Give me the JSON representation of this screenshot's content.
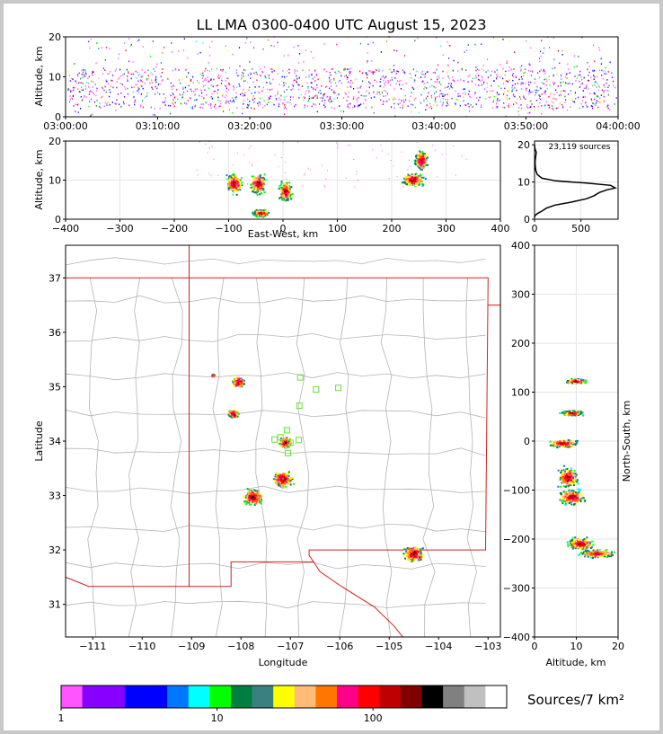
{
  "title": "LL LMA 0300-0400 UTC August 15, 2023",
  "colors": {
    "frame": "#c8c8c8",
    "state_border": "#d42020",
    "county_border": "#b4b4b4",
    "station": "#66e033",
    "altitude_profile_line": "#000000",
    "colorscale": [
      "#ff55ff",
      "#8800ff",
      "#8800ff",
      "#0000ff",
      "#0000ff",
      "#0077ff",
      "#00ffff",
      "#00ff00",
      "#008040",
      "#3a8080",
      "#ffff00",
      "#ffbb77",
      "#ff7700",
      "#ff0088",
      "#ff0000",
      "#c00000",
      "#800000",
      "#000000",
      "#808080",
      "#c0c0c0",
      "#ffffff"
    ]
  },
  "chart_data": [
    {
      "id": "time_height",
      "type": "scatter",
      "xlabel": "",
      "ylabel": "Altitude, km",
      "x_tick_labels": [
        "03:00:00",
        "03:10:00",
        "03:20:00",
        "03:30:00",
        "03:40:00",
        "03:50:00",
        "04:00:00"
      ],
      "xlim": [
        "03:00:00",
        "04:00:00"
      ],
      "ylim": [
        0,
        20
      ],
      "y_ticks": [
        0,
        10,
        20
      ],
      "description_of_data": "LMA VHF sources vs time, dense band 2-12 km altitude throughout the hour"
    },
    {
      "id": "ew_height",
      "type": "scatter",
      "xlabel": "East-West, km",
      "ylabel": "Altitude, km",
      "xlim": [
        -400,
        400
      ],
      "x_ticks": [
        -400,
        -300,
        -200,
        -100,
        0,
        100,
        200,
        300,
        400
      ],
      "ylim": [
        0,
        20
      ],
      "y_ticks": [
        0,
        10,
        20
      ],
      "clusters": [
        {
          "x": -90,
          "z": 9,
          "dx": 18,
          "dz": 3
        },
        {
          "x": -45,
          "z": 9,
          "dx": 18,
          "dz": 3
        },
        {
          "x": 5,
          "z": 7,
          "dx": 14,
          "dz": 3
        },
        {
          "x": -40,
          "z": 1.5,
          "dx": 18,
          "dz": 1
        },
        {
          "x": 255,
          "z": 15,
          "dx": 14,
          "dz": 3
        },
        {
          "x": 240,
          "z": 10,
          "dx": 25,
          "dz": 2
        }
      ]
    },
    {
      "id": "altitude_histogram",
      "type": "line",
      "annotation": "23,119 sources",
      "xlim": [
        0,
        900
      ],
      "x_ticks": [
        0,
        500
      ],
      "ylim": [
        0,
        21
      ],
      "y_ticks": [
        0,
        10,
        20
      ],
      "profile": [
        [
          0,
          0.5
        ],
        [
          5,
          1
        ],
        [
          30,
          1.5
        ],
        [
          80,
          2.2
        ],
        [
          130,
          3
        ],
        [
          220,
          3.8
        ],
        [
          400,
          4.6
        ],
        [
          560,
          5.5
        ],
        [
          640,
          6.3
        ],
        [
          700,
          7.2
        ],
        [
          780,
          7.9
        ],
        [
          870,
          8.4
        ],
        [
          820,
          9.1
        ],
        [
          560,
          9.7
        ],
        [
          230,
          10.3
        ],
        [
          80,
          11
        ],
        [
          30,
          12
        ],
        [
          15,
          13
        ],
        [
          10,
          14
        ],
        [
          6,
          15
        ],
        [
          8,
          16
        ],
        [
          14,
          17
        ],
        [
          18,
          18
        ],
        [
          4,
          19
        ],
        [
          0,
          20
        ]
      ]
    },
    {
      "id": "plan_view",
      "type": "scatter",
      "xlabel": "Longitude",
      "ylabel": "Latitude",
      "xlim": [
        -111.55,
        -102.75
      ],
      "ylim": [
        30.4,
        37.6
      ],
      "x_ticks": [
        -111,
        -110,
        -109,
        -108,
        -107,
        -106,
        -105,
        -104,
        -103
      ],
      "y_ticks": [
        31,
        32,
        33,
        34,
        35,
        36,
        37
      ],
      "storm_clusters": [
        {
          "lon": -108.05,
          "lat": 35.08,
          "r": 0.18
        },
        {
          "lon": -108.15,
          "lat": 34.5,
          "r": 0.15
        },
        {
          "lon": -107.1,
          "lat": 33.97,
          "r": 0.18
        },
        {
          "lon": -107.15,
          "lat": 33.3,
          "r": 0.28
        },
        {
          "lon": -107.75,
          "lat": 32.97,
          "r": 0.28
        },
        {
          "lon": -104.5,
          "lat": 31.92,
          "r": 0.28
        },
        {
          "lon": -108.55,
          "lat": 35.2,
          "r": 0.05
        }
      ],
      "stations": [
        {
          "lon": -106.8,
          "lat": 35.17
        },
        {
          "lon": -106.48,
          "lat": 34.95
        },
        {
          "lon": -106.03,
          "lat": 34.98
        },
        {
          "lon": -106.82,
          "lat": 34.65
        },
        {
          "lon": -107.07,
          "lat": 34.2
        },
        {
          "lon": -107.2,
          "lat": 34.07
        },
        {
          "lon": -107.32,
          "lat": 34.03
        },
        {
          "lon": -107.0,
          "lat": 33.97
        },
        {
          "lon": -106.83,
          "lat": 34.02
        },
        {
          "lon": -107.05,
          "lat": 33.78
        }
      ]
    },
    {
      "id": "height_ns",
      "type": "scatter",
      "xlabel": "Altitude, km",
      "ylabel": "North-South, km",
      "xlim": [
        0,
        20
      ],
      "x_ticks": [
        0,
        10,
        20
      ],
      "ylim": [
        -400,
        400
      ],
      "y_ticks": [
        -400,
        -300,
        -200,
        -100,
        0,
        100,
        200,
        300,
        400
      ],
      "clusters": [
        {
          "z": 10,
          "y": 122,
          "dz": 3,
          "dy": 6
        },
        {
          "z": 9,
          "y": 57,
          "dz": 3,
          "dy": 6
        },
        {
          "z": 7,
          "y": -5,
          "dz": 4,
          "dy": 10
        },
        {
          "z": 8,
          "y": -75,
          "dz": 3,
          "dy": 25
        },
        {
          "z": 9,
          "y": -115,
          "dz": 4,
          "dy": 18
        },
        {
          "z": 15,
          "y": -230,
          "dz": 5,
          "dy": 10
        },
        {
          "z": 11,
          "y": -210,
          "dz": 4,
          "dy": 15
        }
      ]
    },
    {
      "id": "colorbar",
      "type": "heatmap",
      "label": "Sources/7 km²",
      "tick_labels": [
        "1",
        "10",
        "100"
      ],
      "scale": "log"
    }
  ]
}
